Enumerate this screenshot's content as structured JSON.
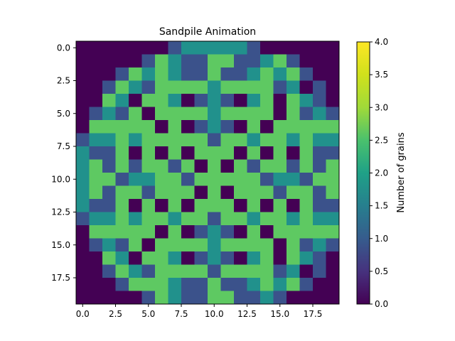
{
  "chart_data": {
    "type": "heatmap",
    "title": "Sandpile Animation",
    "xlabel": "",
    "ylabel": "",
    "rows": 20,
    "cols": 20,
    "x_ticks": [
      "0.0",
      "2.5",
      "5.0",
      "7.5",
      "10.0",
      "12.5",
      "15.0",
      "17.5"
    ],
    "y_ticks": [
      "0.0",
      "2.5",
      "5.0",
      "7.5",
      "10.0",
      "12.5",
      "15.0",
      "17.5"
    ],
    "x_tick_values": [
      0,
      2.5,
      5,
      7.5,
      10,
      12.5,
      15,
      17.5
    ],
    "y_tick_values": [
      0,
      2.5,
      5,
      7.5,
      10,
      12.5,
      15,
      17.5
    ],
    "colorbar": {
      "label": "Number of grains",
      "min": 0,
      "max": 4,
      "ticks": [
        "0.0",
        "0.5",
        "1.0",
        "1.5",
        "2.0",
        "2.5",
        "3.0",
        "3.5",
        "4.0"
      ],
      "tick_values": [
        0,
        0.5,
        1,
        1.5,
        2,
        2.5,
        3,
        3.5,
        4
      ],
      "colormap": "viridis"
    },
    "grid": [
      [
        0,
        0,
        0,
        0,
        0,
        0,
        0,
        1,
        2,
        2,
        2,
        2,
        2,
        1,
        0,
        0,
        0,
        0,
        0,
        0
      ],
      [
        0,
        0,
        0,
        0,
        0,
        1,
        3,
        2,
        1,
        1,
        3,
        3,
        1,
        1,
        2,
        3,
        1,
        0,
        0,
        0
      ],
      [
        0,
        0,
        0,
        1,
        3,
        2,
        3,
        2,
        1,
        1,
        3,
        1,
        1,
        2,
        3,
        2,
        3,
        1,
        0,
        0
      ],
      [
        0,
        0,
        1,
        3,
        2,
        1,
        3,
        3,
        3,
        3,
        2,
        3,
        3,
        3,
        3,
        1,
        2,
        0,
        1,
        0
      ],
      [
        0,
        0,
        3,
        2,
        0,
        3,
        3,
        2,
        0,
        1,
        2,
        1,
        0,
        2,
        3,
        0,
        3,
        2,
        1,
        0
      ],
      [
        0,
        1,
        2,
        1,
        3,
        0,
        3,
        3,
        3,
        3,
        2,
        3,
        3,
        3,
        3,
        0,
        3,
        1,
        2,
        1
      ],
      [
        0,
        3,
        3,
        3,
        3,
        3,
        0,
        3,
        0,
        1,
        2,
        1,
        0,
        3,
        0,
        3,
        3,
        3,
        3,
        3
      ],
      [
        1,
        2,
        2,
        3,
        2,
        3,
        3,
        3,
        3,
        3,
        1,
        3,
        3,
        2,
        3,
        3,
        2,
        3,
        2,
        2
      ],
      [
        2,
        1,
        1,
        3,
        0,
        3,
        0,
        3,
        0,
        3,
        3,
        3,
        0,
        3,
        0,
        3,
        0,
        3,
        1,
        1
      ],
      [
        2,
        3,
        1,
        3,
        1,
        3,
        3,
        1,
        3,
        0,
        3,
        0,
        3,
        1,
        3,
        3,
        1,
        3,
        1,
        3
      ],
      [
        2,
        3,
        3,
        1,
        2,
        2,
        3,
        3,
        1,
        3,
        3,
        3,
        3,
        3,
        1,
        2,
        2,
        1,
        3,
        3
      ],
      [
        2,
        3,
        1,
        3,
        3,
        1,
        3,
        3,
        3,
        0,
        3,
        0,
        3,
        3,
        3,
        1,
        3,
        3,
        1,
        3
      ],
      [
        2,
        1,
        1,
        3,
        0,
        3,
        0,
        3,
        0,
        3,
        3,
        3,
        0,
        3,
        0,
        3,
        0,
        3,
        1,
        1
      ],
      [
        1,
        2,
        2,
        3,
        2,
        3,
        3,
        2,
        3,
        3,
        1,
        3,
        3,
        2,
        3,
        3,
        2,
        3,
        2,
        2
      ],
      [
        0,
        3,
        3,
        3,
        3,
        3,
        0,
        3,
        0,
        1,
        2,
        1,
        0,
        3,
        0,
        3,
        3,
        3,
        3,
        3
      ],
      [
        0,
        1,
        2,
        1,
        3,
        0,
        3,
        3,
        3,
        3,
        2,
        3,
        3,
        3,
        3,
        0,
        3,
        1,
        2,
        1
      ],
      [
        0,
        0,
        3,
        2,
        0,
        3,
        3,
        2,
        0,
        1,
        2,
        1,
        0,
        2,
        3,
        0,
        3,
        2,
        1,
        0
      ],
      [
        0,
        0,
        1,
        3,
        2,
        1,
        3,
        3,
        3,
        3,
        1,
        3,
        3,
        3,
        3,
        1,
        2,
        0,
        1,
        0
      ],
      [
        0,
        0,
        0,
        1,
        3,
        3,
        3,
        2,
        1,
        1,
        3,
        1,
        1,
        2,
        3,
        2,
        3,
        1,
        0,
        0
      ],
      [
        0,
        0,
        0,
        0,
        0,
        1,
        3,
        2,
        1,
        1,
        3,
        3,
        1,
        1,
        2,
        1,
        0,
        0,
        0,
        0
      ]
    ]
  }
}
